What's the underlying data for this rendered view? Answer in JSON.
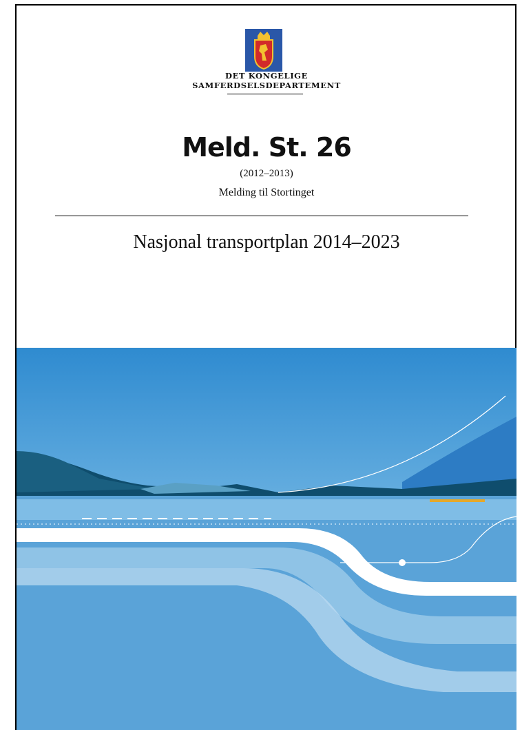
{
  "header": {
    "ministry": [
      "DET KONGELIGE",
      "SAMFERDSELSDEPARTEMENT"
    ]
  },
  "report": {
    "title": "Meld. St. 26",
    "session": "(2012–2013)",
    "subtitle": "Melding til Stortinget"
  },
  "document_title": "Nasjonal transportplan 2014–2023"
}
